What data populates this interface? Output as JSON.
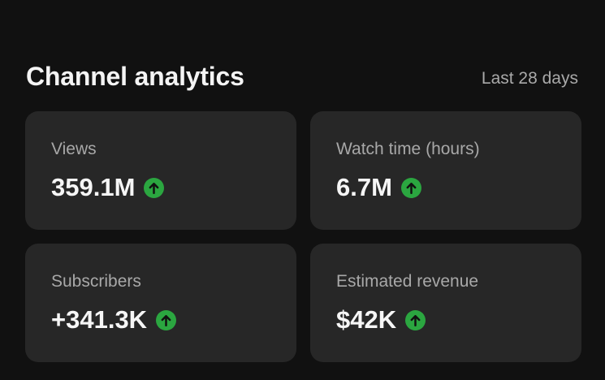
{
  "header": {
    "title": "Channel analytics",
    "period": "Last 28 days"
  },
  "cards": [
    {
      "label": "Views",
      "value": "359.1M"
    },
    {
      "label": "Watch time (hours)",
      "value": "6.7M"
    },
    {
      "label": "Subscribers",
      "value": "+341.3K"
    },
    {
      "label": "Estimated revenue",
      "value": "$42K"
    }
  ]
}
